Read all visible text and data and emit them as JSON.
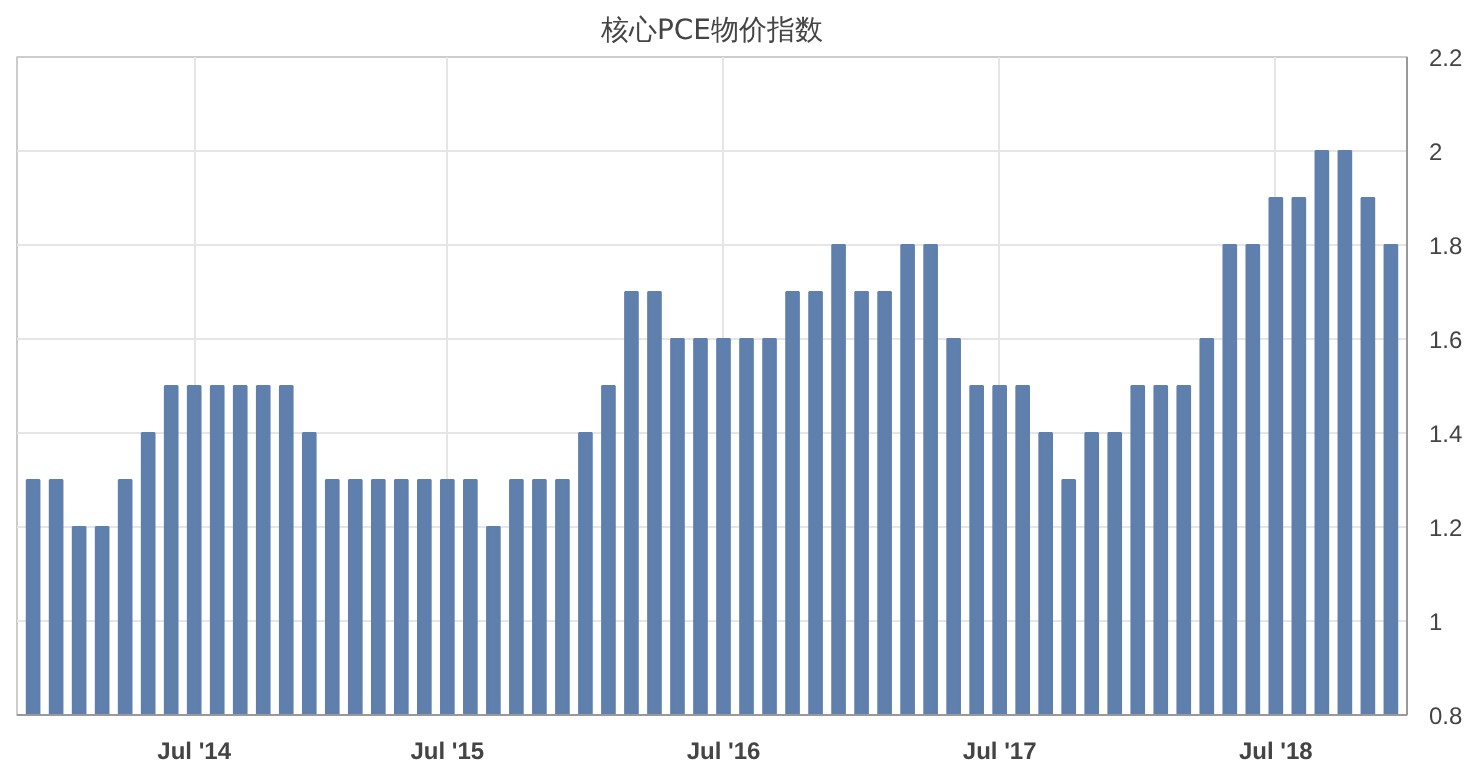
{
  "chart_data": {
    "type": "bar",
    "title": "核心PCE物价指数",
    "categories": [
      null,
      null,
      null,
      null,
      null,
      null,
      null,
      "Jul '14",
      null,
      null,
      null,
      null,
      null,
      null,
      null,
      null,
      null,
      null,
      "Jul '15",
      null,
      null,
      null,
      null,
      null,
      null,
      null,
      null,
      null,
      null,
      null,
      "Jul '16",
      null,
      null,
      null,
      null,
      null,
      null,
      null,
      null,
      null,
      null,
      null,
      "Jul '17",
      null,
      null,
      null,
      null,
      null,
      null,
      null,
      null,
      null,
      null,
      null,
      "Jul '18",
      null,
      null,
      null,
      null,
      null
    ],
    "values": [
      1.3,
      1.3,
      1.2,
      1.2,
      1.3,
      1.4,
      1.5,
      1.5,
      1.5,
      1.5,
      1.5,
      1.5,
      1.4,
      1.3,
      1.3,
      1.3,
      1.3,
      1.3,
      1.3,
      1.3,
      1.2,
      1.3,
      1.3,
      1.3,
      1.4,
      1.5,
      1.7,
      1.7,
      1.6,
      1.6,
      1.6,
      1.6,
      1.6,
      1.7,
      1.7,
      1.8,
      1.7,
      1.7,
      1.8,
      1.8,
      1.6,
      1.5,
      1.5,
      1.5,
      1.4,
      1.3,
      1.4,
      1.4,
      1.5,
      1.5,
      1.5,
      1.6,
      1.8,
      1.8,
      1.9,
      1.9,
      2.0,
      2.0,
      1.9,
      1.8
    ],
    "color": "#5f7fad",
    "ylim": [
      0.8,
      2.2
    ],
    "yticks": [
      0.8,
      1,
      1.2,
      1.4,
      1.6,
      1.8,
      2,
      2.2
    ],
    "grid": true
  }
}
